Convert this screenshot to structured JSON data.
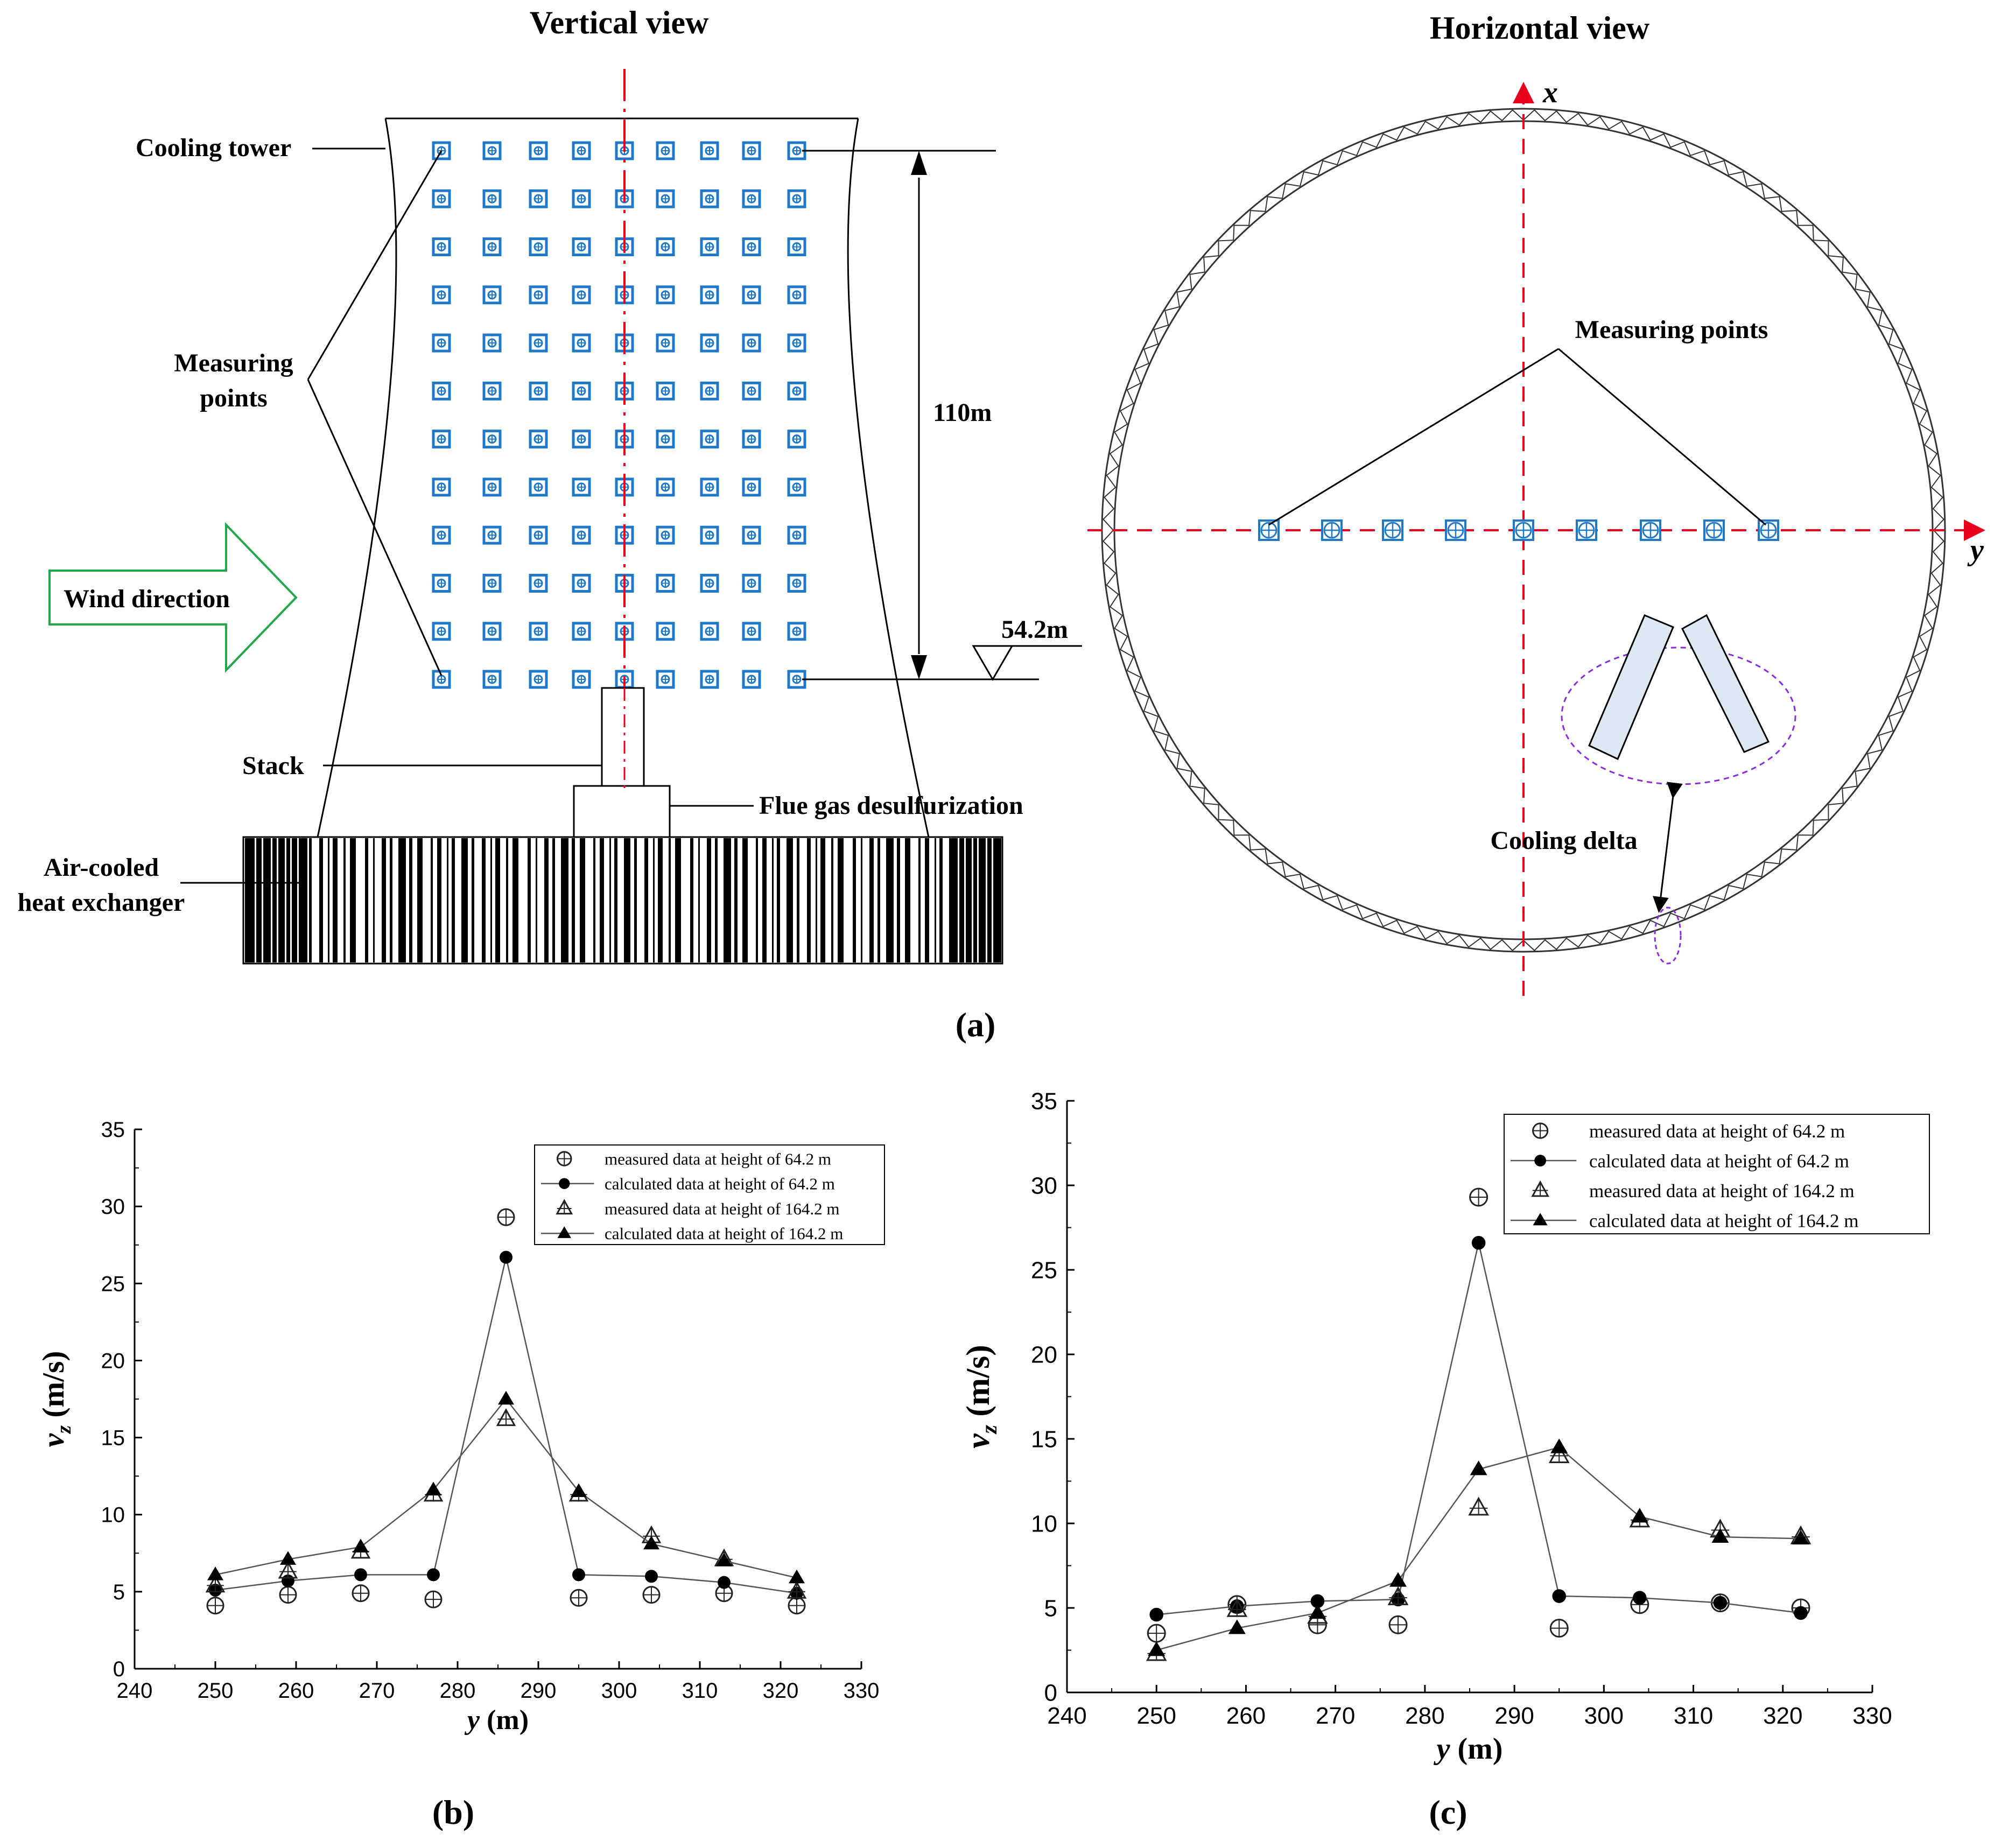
{
  "panel_a": {
    "vertical_title": "Vertical view",
    "horizontal_title": "Horizontal view",
    "labels": {
      "cooling_tower": "Cooling tower",
      "measuring_points_l1": "Measuring",
      "measuring_points_l2": "points",
      "wind_direction": "Wind direction",
      "dim_110": "110m",
      "dim_54": "54.2m",
      "stack": "Stack",
      "fgd": "Flue gas desulfurization",
      "ach_l1": "Air-cooled",
      "ach_l2": "heat exchanger",
      "h_measuring_points": "Measuring points",
      "cooling_delta": "Cooling delta",
      "axis_x": "x",
      "axis_y": "y"
    },
    "caption": "(a)",
    "colors": {
      "marker": "#1f78c8",
      "centerline": "#e8001c",
      "wind": "#22a84a",
      "delta": "#8a2be2"
    }
  },
  "chart_data": [
    {
      "type": "line",
      "panel": "(b)",
      "xlabel_var": "y",
      "xlabel_unit": " (m)",
      "ylabel_var": "v",
      "ylabel_sub": "z",
      "ylabel_unit": " (m/s)",
      "xlim": [
        240,
        330
      ],
      "ylim": [
        0,
        35
      ],
      "xticks": [
        "240",
        "250",
        "260",
        "270",
        "280",
        "290",
        "300",
        "310",
        "320",
        "330"
      ],
      "yticks": [
        "0",
        "5",
        "10",
        "15",
        "20",
        "25",
        "30",
        "35"
      ],
      "x": [
        250,
        259,
        268,
        277,
        286,
        295,
        304,
        313,
        322
      ],
      "series": [
        {
          "name": "measured data at height of 64.2 m",
          "marker": "circle-plus",
          "line": false,
          "values": [
            4.1,
            4.8,
            4.9,
            4.5,
            29.3,
            4.6,
            4.8,
            4.9,
            4.1
          ]
        },
        {
          "name": "calculated data at height of 64.2 m",
          "marker": "circle-filled",
          "line": true,
          "values": [
            5.1,
            5.7,
            6.1,
            6.1,
            26.7,
            6.1,
            6.0,
            5.6,
            4.9
          ]
        },
        {
          "name": "measured data at height of 164.2 m",
          "marker": "triangle-plus",
          "line": false,
          "values": [
            5.4,
            6.3,
            7.6,
            11.3,
            16.2,
            11.3,
            8.6,
            7.1,
            5.0
          ]
        },
        {
          "name": "calculated data at height of 164.2 m",
          "marker": "triangle-filled",
          "line": true,
          "values": [
            6.1,
            7.1,
            7.9,
            11.6,
            17.5,
            11.5,
            8.1,
            7.0,
            5.9
          ]
        }
      ]
    },
    {
      "type": "line",
      "panel": "(c)",
      "xlabel_var": "y",
      "xlabel_unit": " (m)",
      "ylabel_var": "v",
      "ylabel_sub": "z",
      "ylabel_unit": " (m/s)",
      "xlim": [
        240,
        330
      ],
      "ylim": [
        0,
        35
      ],
      "xticks": [
        "240",
        "250",
        "260",
        "270",
        "280",
        "290",
        "300",
        "310",
        "320",
        "330"
      ],
      "yticks": [
        "0",
        "5",
        "10",
        "15",
        "20",
        "25",
        "30",
        "35"
      ],
      "x": [
        250,
        259,
        268,
        277,
        286,
        295,
        304,
        313,
        322
      ],
      "series": [
        {
          "name": "measured data at height of 64.2 m",
          "marker": "circle-plus",
          "line": false,
          "values": [
            3.5,
            5.2,
            4.0,
            4.0,
            29.3,
            3.8,
            5.2,
            5.3,
            5.0
          ]
        },
        {
          "name": "calculated data at height of 64.2 m",
          "marker": "circle-filled",
          "line": true,
          "values": [
            4.6,
            5.1,
            5.4,
            5.5,
            26.6,
            5.7,
            5.6,
            5.3,
            4.7
          ]
        },
        {
          "name": "measured data at height of 164.2 m",
          "marker": "triangle-plus",
          "line": false,
          "values": [
            2.3,
            4.9,
            4.5,
            5.6,
            10.9,
            14.0,
            10.2,
            9.6,
            9.2
          ]
        },
        {
          "name": "calculated data at height of 164.2 m",
          "marker": "triangle-filled",
          "line": true,
          "values": [
            2.5,
            3.8,
            4.7,
            6.6,
            13.2,
            14.5,
            10.4,
            9.2,
            9.1
          ]
        }
      ]
    }
  ]
}
